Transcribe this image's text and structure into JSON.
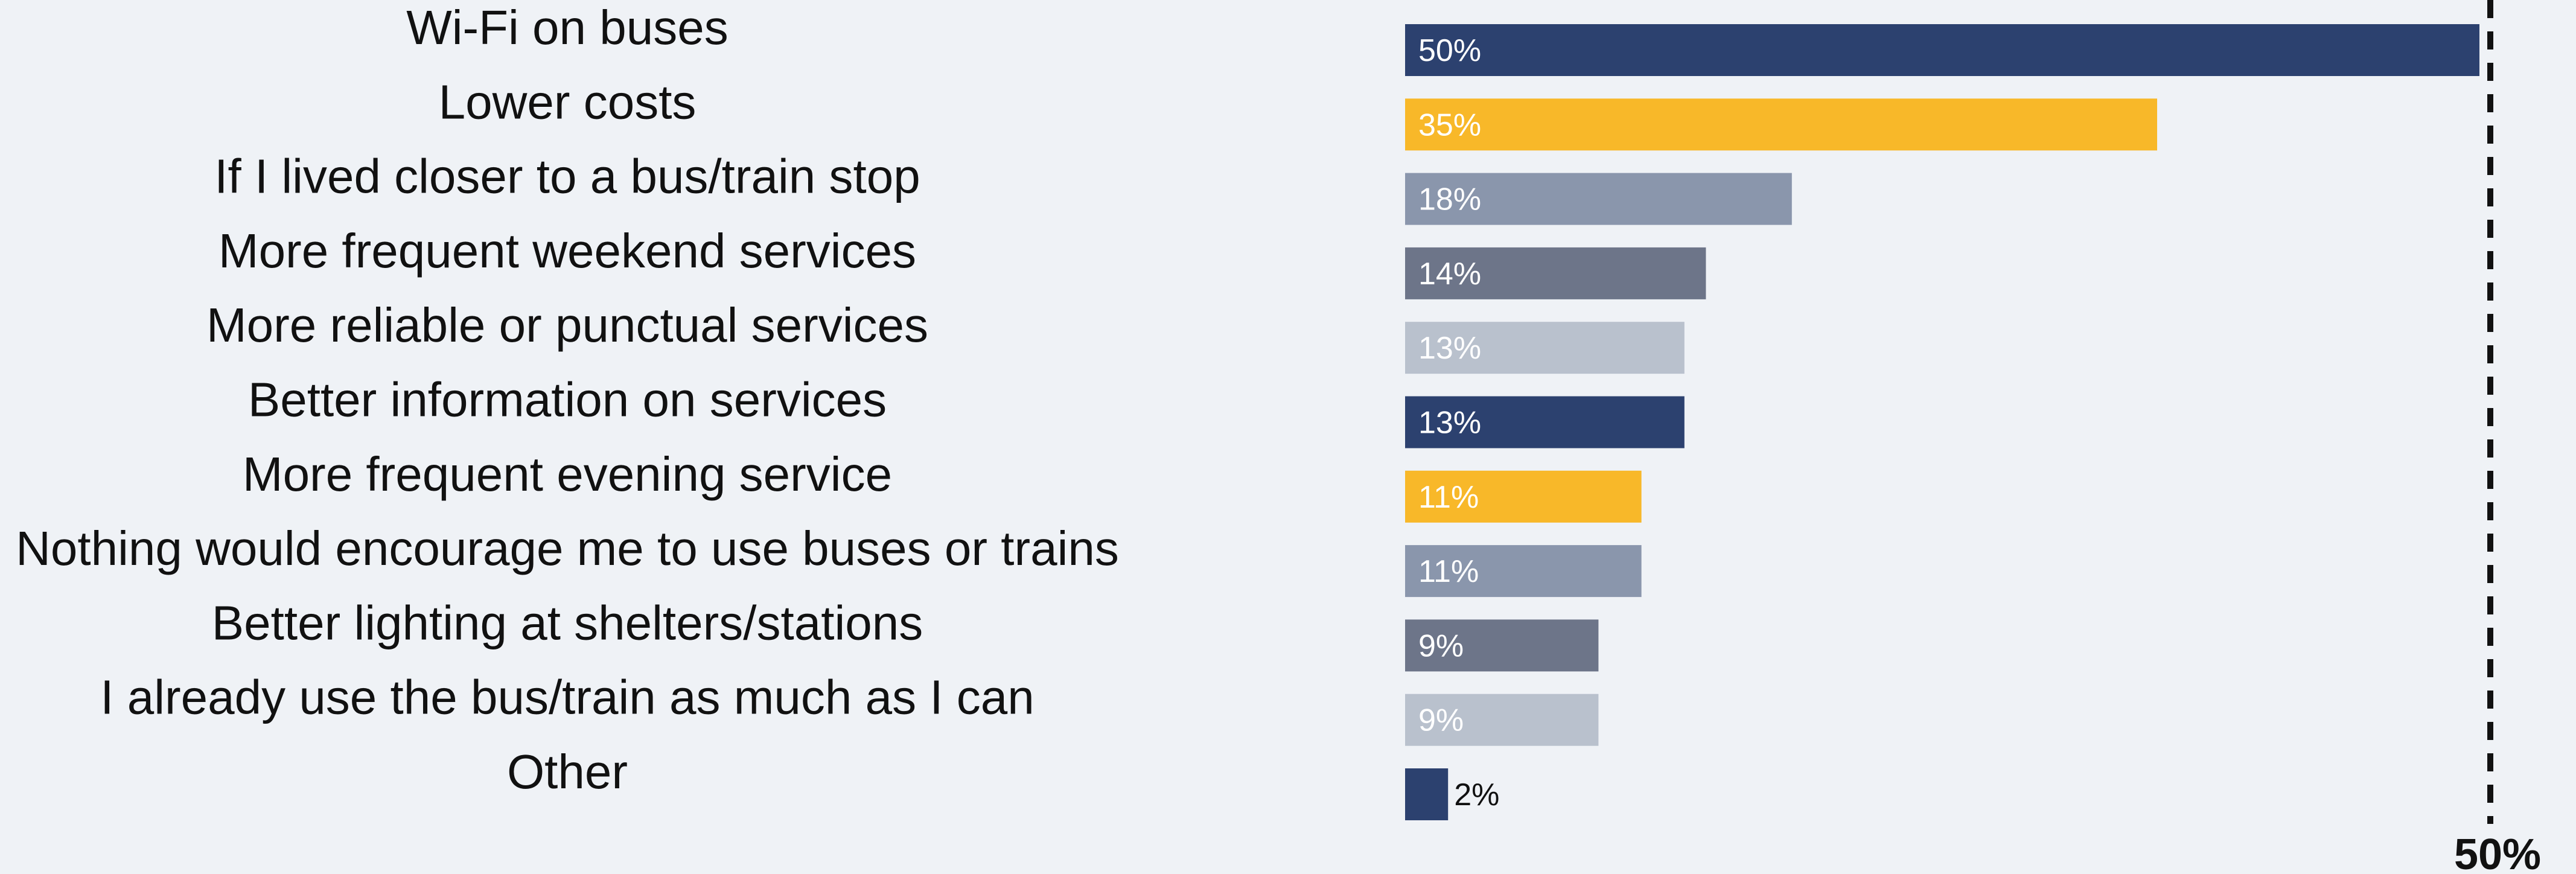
{
  "chart_data": {
    "type": "bar",
    "orientation": "horizontal",
    "categories": [
      "Wi-Fi on buses",
      "Lower costs",
      "If I lived closer to a bus/train stop",
      "More frequent weekend services",
      "More reliable or punctual services",
      "Better information on services",
      "More frequent evening service",
      "Nothing would encourage me to use buses or trains",
      "Better lighting at shelters/stations",
      "I already use the bus/train as much as I can",
      "Other"
    ],
    "values": [
      50,
      35,
      18,
      14,
      13,
      13,
      11,
      11,
      9,
      9,
      2
    ],
    "value_labels": [
      "50%",
      "35%",
      "18%",
      "14%",
      "13%",
      "13%",
      "11%",
      "11%",
      "9%",
      "9%",
      "2%"
    ],
    "colors": [
      "#2c416f",
      "#f8b829",
      "#8a96ac",
      "#6d7589",
      "#b9c1cd",
      "#2c416f",
      "#f8b829",
      "#8a96ac",
      "#6d7589",
      "#b9c1cd",
      "#2c416f"
    ],
    "label_colors": [
      "#ffffff",
      "#ffffff",
      "#ffffff",
      "#ffffff",
      "#ffffff",
      "#ffffff",
      "#ffffff",
      "#ffffff",
      "#ffffff",
      "#ffffff",
      "#111111"
    ],
    "xlim": [
      0,
      50
    ],
    "reference_line": {
      "value": 50,
      "label": "50%",
      "style": "dashed"
    },
    "title": "",
    "xlabel": "",
    "ylabel": "",
    "grid": false,
    "legend": "none"
  }
}
